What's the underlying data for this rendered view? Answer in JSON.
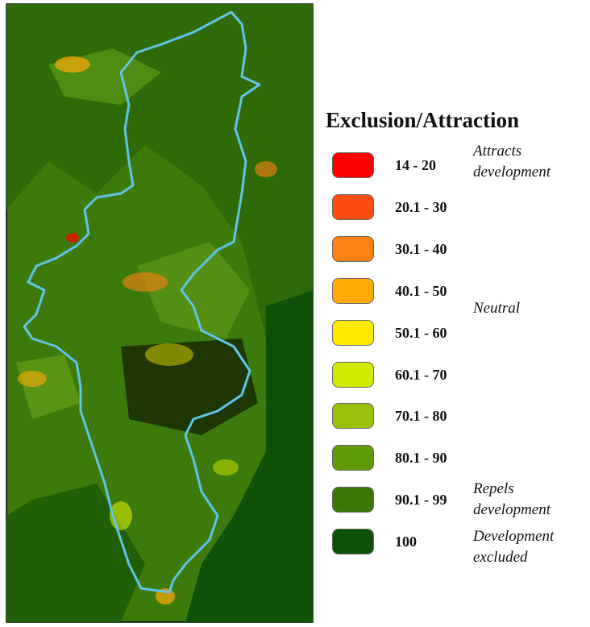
{
  "legend": {
    "title": "Exclusion/Attraction",
    "items": [
      {
        "label": "14 - 20",
        "color": "#ff0000"
      },
      {
        "label": "20.1 - 30",
        "color": "#fc4c10"
      },
      {
        "label": "30.1 - 40",
        "color": "#ff8012"
      },
      {
        "label": "40.1 - 50",
        "color": "#ffaa05"
      },
      {
        "label": "50.1 - 60",
        "color": "#ffea00"
      },
      {
        "label": "60.1 - 70",
        "color": "#d5e800"
      },
      {
        "label": "70.1 - 80",
        "color": "#9ac10a"
      },
      {
        "label": "80.1 - 90",
        "color": "#5f9a08"
      },
      {
        "label": "90.1 - 99",
        "color": "#397807"
      },
      {
        "label": "100",
        "color": "#0c5206"
      }
    ]
  },
  "annotations": [
    "Attracts development",
    "Neutral",
    "Repels development",
    "Development excluded"
  ]
}
